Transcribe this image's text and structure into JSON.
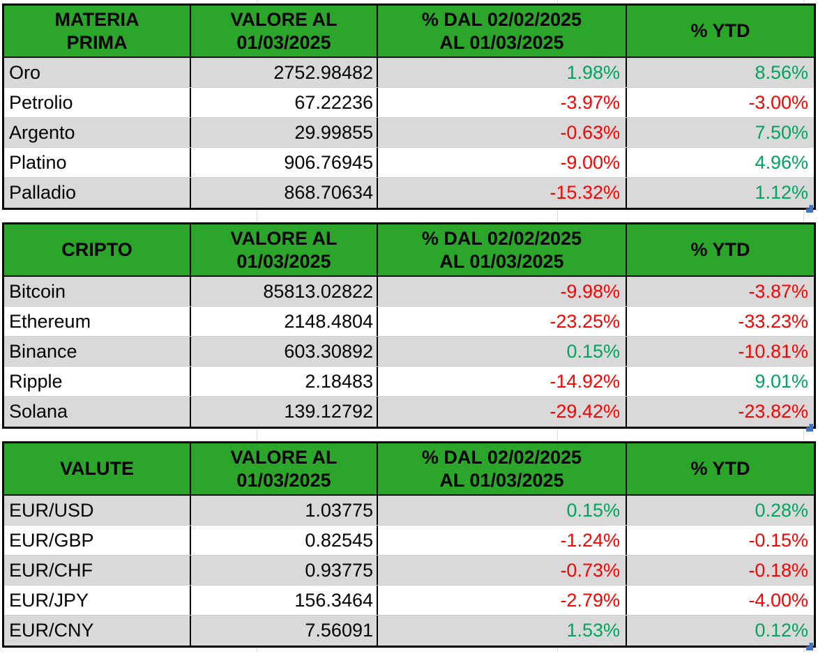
{
  "colors": {
    "header_green": "#2CA52B",
    "band_gray": "#D9D9D9",
    "positive_green": "#00A45C",
    "negative_red": "#FF0000",
    "handle_blue": "#4472C4",
    "gridline_gray": "#D8D8D8",
    "row_line_gray": "#CFCFCF",
    "border_black": "#000000"
  },
  "tables": [
    {
      "header": {
        "title": "MATERIA\nPRIMA",
        "value_col": "VALORE AL\n01/03/2025",
        "period_col": "% DAL 02/02/2025\nAL 01/03/2025",
        "ytd_col": "% YTD"
      },
      "rows": [
        {
          "label": "Oro",
          "value": "2752.98482",
          "pct_period": "1.98%",
          "pct_ytd": "8.56%"
        },
        {
          "label": "Petrolio",
          "value": "67.22236",
          "pct_period": "-3.97%",
          "pct_ytd": "-3.00%"
        },
        {
          "label": "Argento",
          "value": "29.99855",
          "pct_period": "-0.63%",
          "pct_ytd": "7.50%"
        },
        {
          "label": "Platino",
          "value": "906.76945",
          "pct_period": "-9.00%",
          "pct_ytd": "4.96%"
        },
        {
          "label": "Palladio",
          "value": "868.70634",
          "pct_period": "-15.32%",
          "pct_ytd": "1.12%"
        }
      ]
    },
    {
      "header": {
        "title": "CRIPTO",
        "value_col": "VALORE AL\n01/03/2025",
        "period_col": "% DAL 02/02/2025\nAL 01/03/2025",
        "ytd_col": "% YTD"
      },
      "rows": [
        {
          "label": "Bitcoin",
          "value": "85813.02822",
          "pct_period": "-9.98%",
          "pct_ytd": "-3.87%"
        },
        {
          "label": "Ethereum",
          "value": "2148.4804",
          "pct_period": "-23.25%",
          "pct_ytd": "-33.23%"
        },
        {
          "label": "Binance",
          "value": "603.30892",
          "pct_period": "0.15%",
          "pct_ytd": "-10.81%"
        },
        {
          "label": "Ripple",
          "value": "2.18483",
          "pct_period": "-14.92%",
          "pct_ytd": "9.01%"
        },
        {
          "label": "Solana",
          "value": "139.12792",
          "pct_period": "-29.42%",
          "pct_ytd": "-23.82%"
        }
      ]
    },
    {
      "header": {
        "title": "VALUTE",
        "value_col": "VALORE AL\n01/03/2025",
        "period_col": "% DAL 02/02/2025\nAL 01/03/2025",
        "ytd_col": "% YTD"
      },
      "rows": [
        {
          "label": "EUR/USD",
          "value": "1.03775",
          "pct_period": "0.15%",
          "pct_ytd": "0.28%"
        },
        {
          "label": "EUR/GBP",
          "value": "0.82545",
          "pct_period": "-1.24%",
          "pct_ytd": "-0.15%"
        },
        {
          "label": "EUR/CHF",
          "value": "0.93775",
          "pct_period": "-0.73%",
          "pct_ytd": "-0.18%"
        },
        {
          "label": "EUR/JPY",
          "value": "156.3464",
          "pct_period": "-2.79%",
          "pct_ytd": "-4.00%"
        },
        {
          "label": "EUR/CNY",
          "value": "7.56091",
          "pct_period": "1.53%",
          "pct_ytd": "0.12%"
        }
      ]
    }
  ]
}
